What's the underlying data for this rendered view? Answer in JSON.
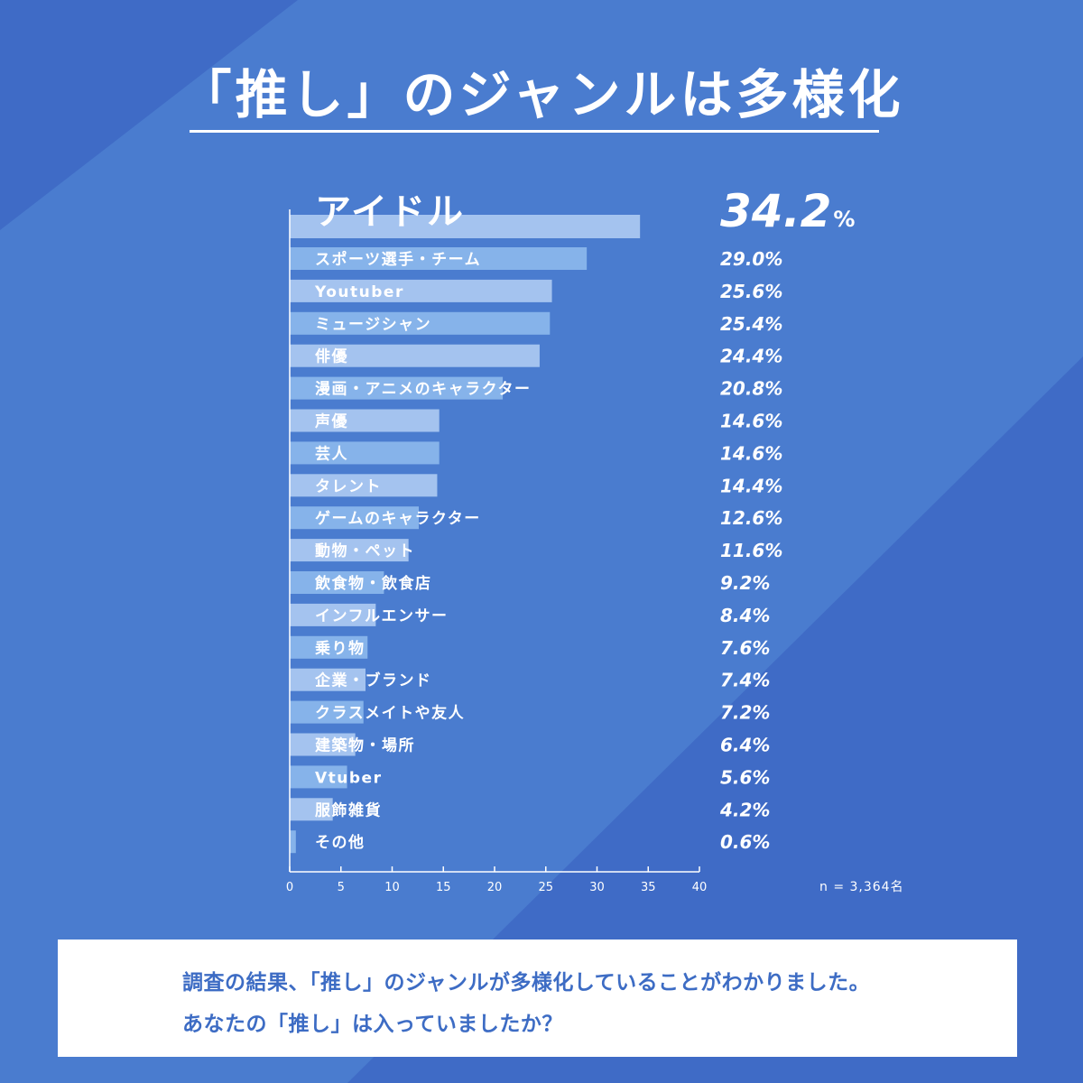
{
  "title": "「推し」のジャンルは多様化",
  "sample_size": "n = 3,364名",
  "note": {
    "line1": "調査の結果、「推し」のジャンルが多様化していることがわかりました。",
    "line2": "あなたの「推し」は入っていましたか？"
  },
  "colors": {
    "background": "#4a7ccf",
    "background_stripe": "#3f6bc6",
    "bar": "#a4c3ef",
    "bar_alt": "#86b3ea",
    "text": "#ffffff",
    "note_text": "#3d6cc4"
  },
  "chart_data": {
    "type": "bar",
    "orientation": "horizontal",
    "categories": [
      "アイドル",
      "スポーツ選手・チーム",
      "Youtuber",
      "ミュージシャン",
      "俳優",
      "漫画・アニメのキャラクター",
      "声優",
      "芸人",
      "タレント",
      "ゲームのキャラクター",
      "動物・ペット",
      "飲食物・飲食店",
      "インフルエンサー",
      "乗り物",
      "企業・ブランド",
      "クラスメイトや友人",
      "建築物・場所",
      "Vtuber",
      "服飾雑貨",
      "その他"
    ],
    "values": [
      34.2,
      29.0,
      25.6,
      25.4,
      24.4,
      20.8,
      14.6,
      14.6,
      14.4,
      12.6,
      11.6,
      9.2,
      8.4,
      7.6,
      7.4,
      7.2,
      6.4,
      5.6,
      4.2,
      0.6
    ],
    "value_labels": [
      "34.2",
      "29.0%",
      "25.6%",
      "25.4%",
      "24.4%",
      "20.8%",
      "14.6%",
      "14.6%",
      "14.4%",
      "12.6%",
      "11.6%",
      "9.2%",
      "8.4%",
      "7.6%",
      "7.4%",
      "7.2%",
      "6.4%",
      "5.6%",
      "4.2%",
      "0.6%"
    ],
    "top_unit": "%",
    "xticks": [
      "0",
      "5",
      "10",
      "15",
      "20",
      "25",
      "30",
      "35",
      "40"
    ],
    "xlim": [
      0,
      40
    ],
    "grid": false
  }
}
